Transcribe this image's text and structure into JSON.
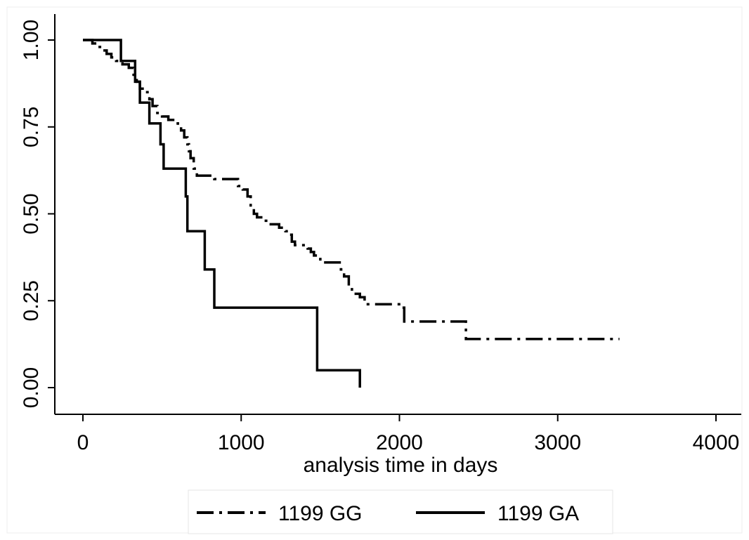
{
  "chart_data": {
    "type": "line",
    "title": "",
    "xlabel": "analysis time in days",
    "ylabel": "",
    "xlim": [
      0,
      4000
    ],
    "ylim": [
      0,
      1
    ],
    "x_ticks": [
      {
        "value": 0,
        "label": "0"
      },
      {
        "value": 1000,
        "label": "1000"
      },
      {
        "value": 2000,
        "label": "2000"
      },
      {
        "value": 3000,
        "label": "3000"
      },
      {
        "value": 4000,
        "label": "4000"
      }
    ],
    "y_ticks": [
      {
        "value": 0,
        "label": "0.00"
      },
      {
        "value": 0.25,
        "label": "0.25"
      },
      {
        "value": 0.5,
        "label": "0.50"
      },
      {
        "value": 0.75,
        "label": "0.75"
      },
      {
        "value": 1,
        "label": "1.00"
      }
    ],
    "grid": false,
    "legend_position": "bottom",
    "series": [
      {
        "name": "1199 GG",
        "style": "dash-dot",
        "color": "#000000",
        "step": true,
        "points": [
          [
            0,
            1.0
          ],
          [
            60,
            0.99
          ],
          [
            90,
            0.98
          ],
          [
            120,
            0.97
          ],
          [
            150,
            0.96
          ],
          [
            180,
            0.95
          ],
          [
            210,
            0.94
          ],
          [
            250,
            0.93
          ],
          [
            290,
            0.92
          ],
          [
            320,
            0.9
          ],
          [
            340,
            0.88
          ],
          [
            360,
            0.86
          ],
          [
            390,
            0.85
          ],
          [
            420,
            0.83
          ],
          [
            440,
            0.81
          ],
          [
            470,
            0.79
          ],
          [
            500,
            0.78
          ],
          [
            540,
            0.77
          ],
          [
            580,
            0.76
          ],
          [
            600,
            0.75
          ],
          [
            620,
            0.74
          ],
          [
            640,
            0.72
          ],
          [
            660,
            0.7
          ],
          [
            670,
            0.68
          ],
          [
            680,
            0.66
          ],
          [
            700,
            0.63
          ],
          [
            720,
            0.61
          ],
          [
            800,
            0.61
          ],
          [
            830,
            0.6
          ],
          [
            960,
            0.6
          ],
          [
            980,
            0.58
          ],
          [
            1010,
            0.57
          ],
          [
            1040,
            0.55
          ],
          [
            1060,
            0.52
          ],
          [
            1080,
            0.5
          ],
          [
            1100,
            0.49
          ],
          [
            1140,
            0.48
          ],
          [
            1170,
            0.47
          ],
          [
            1240,
            0.46
          ],
          [
            1280,
            0.45
          ],
          [
            1300,
            0.44
          ],
          [
            1320,
            0.42
          ],
          [
            1340,
            0.41
          ],
          [
            1420,
            0.4
          ],
          [
            1440,
            0.39
          ],
          [
            1460,
            0.38
          ],
          [
            1490,
            0.37
          ],
          [
            1500,
            0.36
          ],
          [
            1620,
            0.36
          ],
          [
            1630,
            0.34
          ],
          [
            1650,
            0.32
          ],
          [
            1680,
            0.29
          ],
          [
            1700,
            0.27
          ],
          [
            1750,
            0.26
          ],
          [
            1780,
            0.25
          ],
          [
            1800,
            0.24
          ],
          [
            1900,
            0.24
          ],
          [
            2010,
            0.23
          ],
          [
            2030,
            0.19
          ],
          [
            2400,
            0.19
          ],
          [
            2420,
            0.14
          ],
          [
            3390,
            0.14
          ]
        ]
      },
      {
        "name": "1199 GA",
        "style": "solid",
        "color": "#000000",
        "step": true,
        "points": [
          [
            0,
            1.0
          ],
          [
            240,
            0.94
          ],
          [
            330,
            0.88
          ],
          [
            360,
            0.82
          ],
          [
            420,
            0.76
          ],
          [
            490,
            0.7
          ],
          [
            510,
            0.63
          ],
          [
            650,
            0.55
          ],
          [
            660,
            0.45
          ],
          [
            770,
            0.34
          ],
          [
            830,
            0.23
          ],
          [
            1480,
            0.05
          ],
          [
            1750,
            0.0
          ]
        ]
      }
    ]
  }
}
